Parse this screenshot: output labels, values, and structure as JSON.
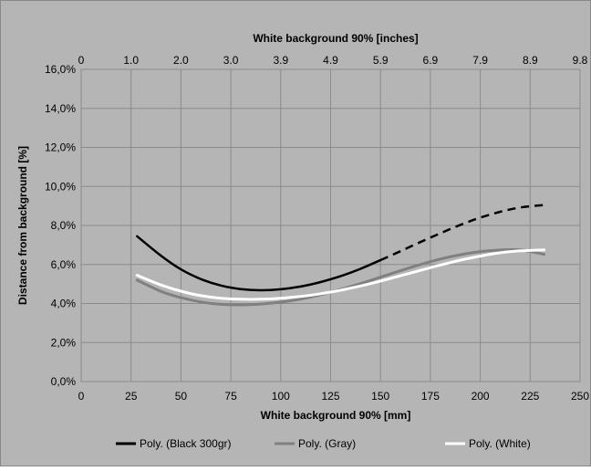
{
  "chart_data": {
    "type": "line",
    "title": "",
    "xlabel": "White background 90% [mm]",
    "x2label": "White background 90% [inches]",
    "ylabel": "Distance from background [%]",
    "xlim": [
      0,
      250
    ],
    "ylim": [
      0,
      16
    ],
    "x_ticks": [
      "0",
      "25",
      "50",
      "75",
      "100",
      "125",
      "150",
      "175",
      "200",
      "225",
      "250"
    ],
    "x2_ticks": [
      "0",
      "1.0",
      "2.0",
      "3.0",
      "3.9",
      "4.9",
      "5.9",
      "6.9",
      "7.9",
      "8.9",
      "9.8"
    ],
    "y_ticks": [
      "0,0%",
      "2,0%",
      "4,0%",
      "6,0%",
      "8,0%",
      "10,0%",
      "12,0%",
      "14,0%",
      "16,0%"
    ],
    "grid": true,
    "legend_position": "bottom",
    "colors": {
      "plot_bg": "#b5b5b5",
      "outer_bg": "#ffffff",
      "grid": "#8c8c8c",
      "black": "#000000",
      "gray": "#808080",
      "white": "#ffffff"
    },
    "series": [
      {
        "name": "Poly. (Black 300gr)",
        "color": "#000000",
        "dashed_from_x": 150,
        "x": [
          28,
          40,
          50,
          60,
          70,
          80,
          90,
          100,
          110,
          120,
          130,
          140,
          150,
          160,
          170,
          180,
          190,
          200,
          210,
          220,
          232
        ],
        "y": [
          7.45,
          6.45,
          5.75,
          5.25,
          4.92,
          4.74,
          4.68,
          4.73,
          4.87,
          5.1,
          5.4,
          5.78,
          6.22,
          6.68,
          7.15,
          7.6,
          8.03,
          8.4,
          8.7,
          8.92,
          9.05
        ]
      },
      {
        "name": "Poly. (Gray)",
        "color": "#808080",
        "x": [
          28,
          40,
          50,
          60,
          70,
          80,
          90,
          100,
          110,
          120,
          130,
          140,
          150,
          160,
          170,
          180,
          190,
          200,
          210,
          220,
          232
        ],
        "y": [
          5.2,
          4.62,
          4.3,
          4.08,
          3.96,
          3.93,
          3.97,
          4.07,
          4.23,
          4.45,
          4.72,
          5.02,
          5.35,
          5.68,
          6.0,
          6.28,
          6.5,
          6.66,
          6.74,
          6.75,
          6.52
        ]
      },
      {
        "name": "Poly. (White)",
        "color": "#ffffff",
        "x": [
          28,
          40,
          50,
          60,
          70,
          80,
          90,
          100,
          110,
          120,
          130,
          140,
          150,
          160,
          170,
          180,
          190,
          200,
          210,
          220,
          232
        ],
        "y": [
          5.45,
          4.95,
          4.63,
          4.4,
          4.27,
          4.22,
          4.22,
          4.27,
          4.36,
          4.5,
          4.68,
          4.9,
          5.15,
          5.42,
          5.7,
          5.97,
          6.22,
          6.43,
          6.6,
          6.7,
          6.75
        ]
      }
    ]
  }
}
